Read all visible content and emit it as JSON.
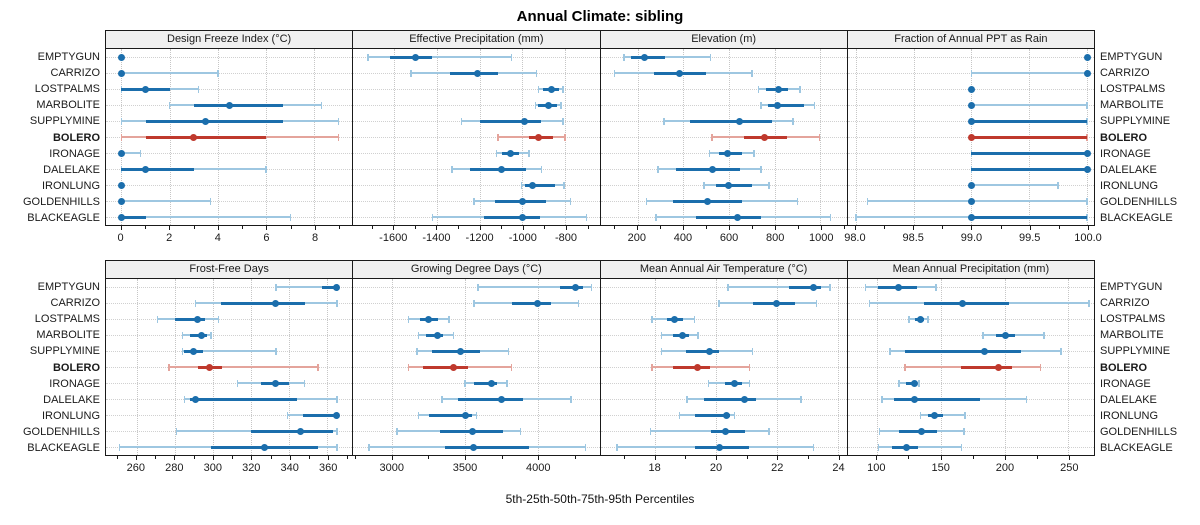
{
  "title": "Annual Climate: sibling",
  "footer": "5th-25th-50th-75th-95th Percentiles",
  "colors": {
    "blue": "#1b6eac",
    "blue_light": "#9ec7e1",
    "red": "#bf392d",
    "red_light": "#e4a49c",
    "grid": "#c6c6c6",
    "strip_bg": "#f0f0f0",
    "border": "#1a1a1a"
  },
  "chart_data": {
    "type": "trellis-percentile-dotplot",
    "percentiles": [
      5,
      25,
      50,
      75,
      95
    ],
    "highlight_site": "BOLERO",
    "legend_position": "none",
    "grid": "dotted",
    "sites": [
      "EMPTYGUN",
      "CARRIZO",
      "LOSTPALMS",
      "MARBOLITE",
      "SUPPLYMINE",
      "BOLERO",
      "IRONAGE",
      "DALELAKE",
      "IRONLUNG",
      "GOLDENHILLS",
      "BLACKEAGLE"
    ],
    "panels": [
      {
        "title": "Design Freeze Index (°C)",
        "xlim": [
          -0.64,
          9.57
        ],
        "ticks": [
          0,
          2,
          4,
          6,
          8
        ],
        "tick_labels": [
          "0",
          "2",
          "4",
          "6",
          "8"
        ],
        "values": [
          [
            0,
            0,
            0,
            0,
            0
          ],
          [
            0,
            0,
            0,
            0,
            4
          ],
          [
            0,
            0,
            1,
            2,
            3.2
          ],
          [
            2,
            3,
            4.5,
            6.7,
            8.3
          ],
          [
            0,
            1,
            3.5,
            6.7,
            9
          ],
          [
            0,
            1,
            3,
            6,
            9
          ],
          [
            0,
            0,
            0,
            0,
            0.8
          ],
          [
            0,
            0,
            1,
            3,
            6
          ],
          [
            0,
            0,
            0,
            0,
            0
          ],
          [
            0,
            0,
            0,
            0,
            3.7
          ],
          [
            0,
            0,
            0,
            1,
            7
          ]
        ]
      },
      {
        "title": "Effective Precipitation (mm)",
        "xlim": [
          -1790,
          -640
        ],
        "ticks": [
          -1600,
          -1400,
          -1200,
          -1000,
          -800
        ],
        "tick_labels": [
          "-1600",
          "-1400",
          "-1200",
          "-1000",
          "-800"
        ],
        "values": [
          [
            -1720,
            -1620,
            -1500,
            -1420,
            -1050
          ],
          [
            -1520,
            -1340,
            -1210,
            -1115,
            -935
          ],
          [
            -925,
            -905,
            -865,
            -830,
            -810
          ],
          [
            -940,
            -925,
            -880,
            -840,
            -820
          ],
          [
            -1285,
            -1200,
            -990,
            -915,
            -810
          ],
          [
            -1115,
            -970,
            -925,
            -855,
            -800
          ],
          [
            -1120,
            -1095,
            -1055,
            -1015,
            -970
          ],
          [
            -1330,
            -1245,
            -1100,
            -985,
            -910
          ],
          [
            -1005,
            -990,
            -955,
            -850,
            -805
          ],
          [
            -1225,
            -1130,
            -1000,
            -890,
            -775
          ],
          [
            -1420,
            -1180,
            -1000,
            -920,
            -700
          ]
        ]
      },
      {
        "title": "Elevation (m)",
        "xlim": [
          38,
          1115
        ],
        "ticks": [
          200,
          400,
          600,
          800,
          1000
        ],
        "tick_labels": [
          "200",
          "400",
          "600",
          "800",
          "1000"
        ],
        "values": [
          [
            140,
            170,
            230,
            320,
            520
          ],
          [
            100,
            270,
            385,
            500,
            700
          ],
          [
            730,
            760,
            815,
            860,
            910
          ],
          [
            740,
            770,
            810,
            930,
            975
          ],
          [
            315,
            430,
            645,
            790,
            880
          ],
          [
            525,
            665,
            755,
            855,
            995
          ],
          [
            515,
            555,
            595,
            655,
            710
          ],
          [
            290,
            370,
            530,
            650,
            740
          ],
          [
            490,
            545,
            600,
            700,
            775
          ],
          [
            240,
            355,
            505,
            655,
            900
          ],
          [
            280,
            455,
            635,
            740,
            1045
          ]
        ]
      },
      {
        "title": "Fraction of Annual PPT as Rain",
        "xlim": [
          97.93,
          100.06
        ],
        "ticks": [
          98.0,
          98.5,
          99.0,
          99.5,
          100.0
        ],
        "tick_labels": [
          "98.0",
          "98.5",
          "99.0",
          "99.5",
          "100.0"
        ],
        "values": [
          [
            100,
            100,
            100,
            100,
            100
          ],
          [
            99,
            100,
            100,
            100,
            100
          ],
          [
            99,
            99,
            99,
            99,
            99
          ],
          [
            99,
            99,
            99,
            99,
            100
          ],
          [
            99,
            99,
            99,
            100,
            100
          ],
          [
            99,
            99,
            99,
            100,
            100
          ],
          [
            99,
            99,
            100,
            100,
            100
          ],
          [
            99,
            99,
            100,
            100,
            100
          ],
          [
            99,
            99,
            99,
            99,
            99.75
          ],
          [
            98.1,
            99,
            99,
            99,
            100
          ],
          [
            98,
            99,
            99,
            100,
            100
          ]
        ]
      },
      {
        "title": "Frost-Free Days",
        "xlim": [
          244,
          373
        ],
        "ticks": [
          260,
          280,
          300,
          320,
          340,
          360
        ],
        "tick_labels": [
          "260",
          "280",
          "300",
          "320",
          "340",
          "360"
        ],
        "values": [
          [
            333,
            357,
            365,
            365,
            365
          ],
          [
            291,
            304,
            333,
            348,
            365
          ],
          [
            271,
            280,
            292,
            296,
            303
          ],
          [
            284,
            288,
            294,
            297,
            299
          ],
          [
            284,
            285,
            290,
            295,
            333
          ],
          [
            277,
            292,
            298,
            305,
            355
          ],
          [
            313,
            325,
            333,
            340,
            348
          ],
          [
            285,
            288,
            291,
            344,
            365
          ],
          [
            339,
            347,
            365,
            365,
            365
          ],
          [
            281,
            320,
            346,
            363,
            365
          ],
          [
            251,
            299,
            327,
            355,
            365
          ]
        ]
      },
      {
        "title": "Growing Degree Days (°C)",
        "xlim": [
          2730,
          4425
        ],
        "ticks": [
          3000,
          3500,
          4000
        ],
        "tick_labels": [
          "3000",
          "3500",
          "4000"
        ],
        "values": [
          [
            3590,
            4150,
            4260,
            4310,
            4370
          ],
          [
            3560,
            3820,
            4000,
            4090,
            4280
          ],
          [
            3110,
            3190,
            3250,
            3310,
            3390
          ],
          [
            3180,
            3230,
            3310,
            3350,
            3420
          ],
          [
            3170,
            3270,
            3470,
            3600,
            3800
          ],
          [
            3110,
            3210,
            3420,
            3520,
            3820
          ],
          [
            3500,
            3560,
            3680,
            3720,
            3790
          ],
          [
            3340,
            3450,
            3750,
            3900,
            4230
          ],
          [
            3180,
            3250,
            3500,
            3550,
            3580
          ],
          [
            3030,
            3330,
            3550,
            3760,
            3880
          ],
          [
            2840,
            3360,
            3560,
            3940,
            4330
          ]
        ]
      },
      {
        "title": "Mean Annual Air Temperature (°C)",
        "xlim": [
          16.2,
          24.3
        ],
        "ticks": [
          18,
          20,
          22,
          24
        ],
        "tick_labels": [
          "18",
          "20",
          "22",
          "24"
        ],
        "values": [
          [
            20.4,
            22.4,
            23.2,
            23.45,
            23.75
          ],
          [
            20.1,
            21.2,
            22.0,
            22.6,
            23.3
          ],
          [
            17.9,
            18.4,
            18.65,
            18.9,
            19.3
          ],
          [
            18.2,
            18.6,
            18.9,
            19.1,
            19.4
          ],
          [
            18.2,
            19.0,
            19.8,
            20.1,
            21.2
          ],
          [
            17.9,
            18.6,
            19.4,
            19.8,
            21.1
          ],
          [
            19.75,
            20.3,
            20.6,
            20.85,
            21.1
          ],
          [
            19.05,
            19.6,
            20.95,
            21.3,
            22.8
          ],
          [
            18.8,
            19.3,
            20.35,
            20.45,
            20.6
          ],
          [
            17.85,
            19.85,
            20.3,
            20.95,
            21.75
          ],
          [
            16.75,
            19.3,
            20.1,
            21.1,
            23.2
          ]
        ]
      },
      {
        "title": "Mean Annual Precipitation (mm)",
        "xlim": [
          77,
          270
        ],
        "ticks": [
          100,
          150,
          200,
          250
        ],
        "tick_labels": [
          "100",
          "150",
          "200",
          "250"
        ],
        "values": [
          [
            91,
            101,
            117,
            131,
            146
          ],
          [
            94,
            137,
            167,
            203,
            266
          ],
          [
            125,
            130,
            134,
            137,
            140
          ],
          [
            183,
            193,
            201,
            208,
            231
          ],
          [
            110,
            122,
            184,
            213,
            244
          ],
          [
            122,
            166,
            195,
            206,
            228
          ],
          [
            117,
            123,
            129,
            131,
            133
          ],
          [
            104,
            113,
            129,
            181,
            217
          ],
          [
            134,
            140,
            145,
            152,
            169
          ],
          [
            102,
            117,
            135,
            147,
            168
          ],
          [
            101,
            112,
            123,
            132,
            166
          ]
        ]
      }
    ]
  }
}
